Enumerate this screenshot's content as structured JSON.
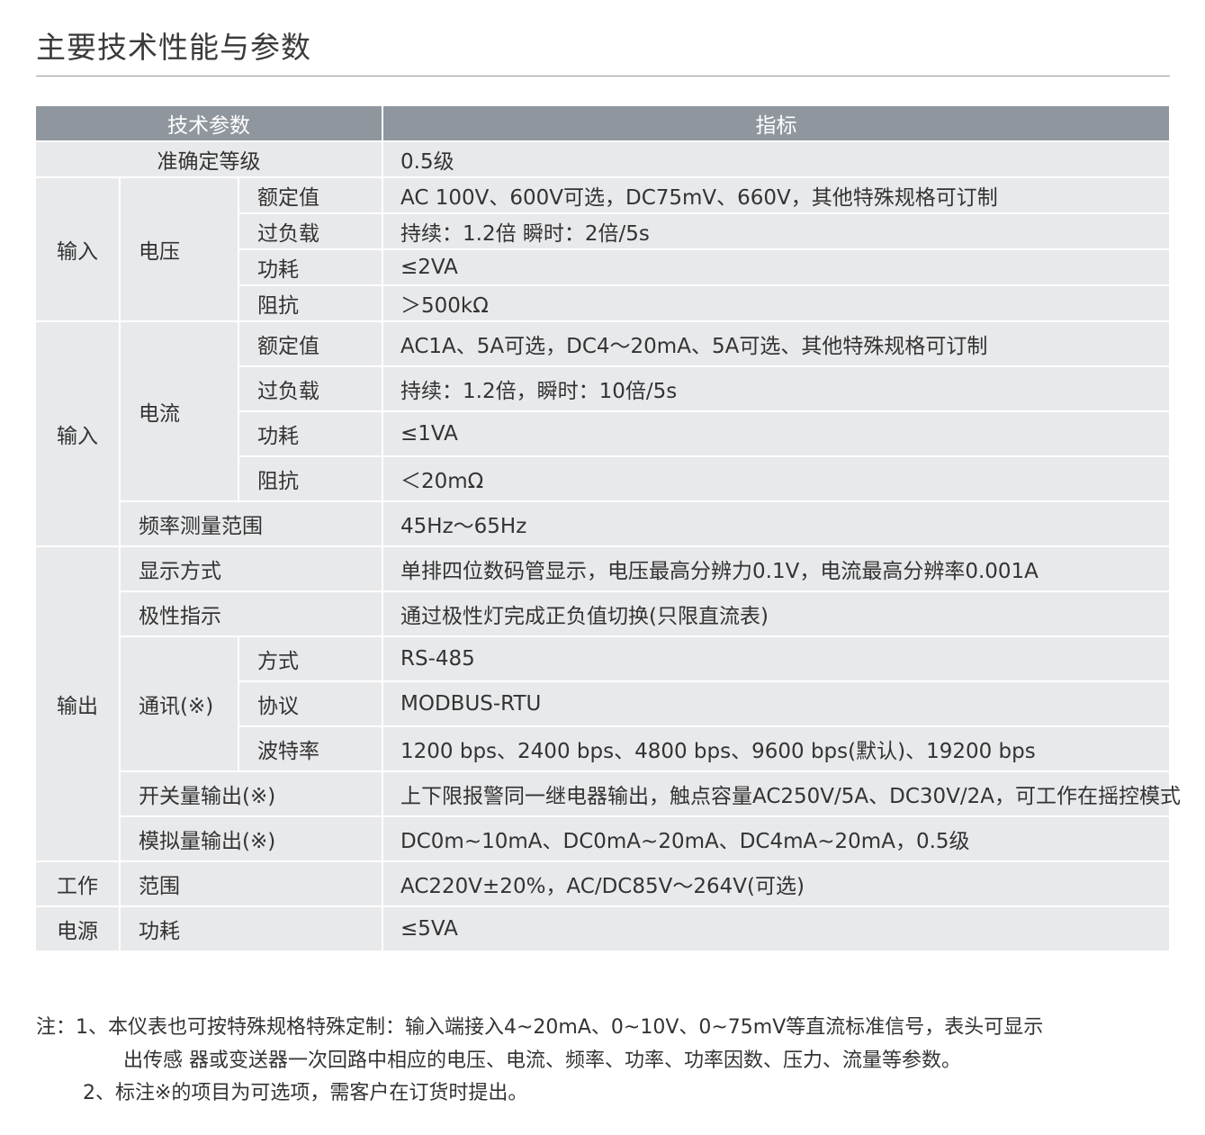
{
  "title": "主要技术性能与参数",
  "table": {
    "headers": [
      "技术参数",
      "指标"
    ],
    "accuracy": {
      "label": "准确定等级",
      "value": "0.5级"
    },
    "voltage": {
      "group": "输入",
      "label": "电压",
      "rows": [
        {
          "label": "额定值",
          "value": "AC 100V、600V可选，DC75mV、660V，其他特殊规格可订制"
        },
        {
          "label": "过负载",
          "value": "持续：1.2倍 瞬时：2倍/5s"
        },
        {
          "label": "功耗",
          "value": "≤2VA"
        },
        {
          "label": "阻抗",
          "value": "＞500kΩ"
        }
      ]
    },
    "current": {
      "group": "输入",
      "label": "电流",
      "rows": [
        {
          "label": "额定值",
          "value": "AC1A、5A可选，DC4～20mA、5A可选、其他特殊规格可订制"
        },
        {
          "label": "过负载",
          "value": "持续：1.2倍，瞬时：10倍/5s"
        },
        {
          "label": "功耗",
          "value": "≤1VA"
        },
        {
          "label": "阻抗",
          "value": "＜20mΩ"
        }
      ],
      "frequency": {
        "label": "频率测量范围",
        "value": "45Hz～65Hz"
      }
    },
    "output": {
      "group": "输出",
      "display": {
        "label": "显示方式",
        "value": "单排四位数码管显示，电压最高分辨力0.1V，电流最高分辨率0.001A"
      },
      "polarity": {
        "label": "极性指示",
        "value": "通过极性灯完成正负值切换(只限直流表)"
      },
      "comm": {
        "label": "通讯(※)",
        "rows": [
          {
            "label": "方式",
            "value": "RS-485"
          },
          {
            "label": "协议",
            "value": "MODBUS-RTU"
          },
          {
            "label": "波特率",
            "value": "1200 bps、2400 bps、4800 bps、9600 bps(默认)、19200 bps"
          }
        ]
      },
      "switch": {
        "label": "开关量输出(※)",
        "value": "上下限报警同一继电器输出，触点容量AC250V/5A、DC30V/2A，可工作在摇控模式"
      },
      "analog": {
        "label": "模拟量输出(※)",
        "value": "DC0m~10mA、DC0mA~20mA、DC4mA~20mA，0.5级"
      }
    },
    "power": {
      "group1": "工作",
      "group2": "电源",
      "range": {
        "label": "范围",
        "value": "AC220V±20%，AC/DC85V～264V(可选)"
      },
      "consumption": {
        "label": "功耗",
        "value": "≤5VA"
      }
    }
  },
  "notes": {
    "prefix": "注：1、",
    "line1": "本仪表也可按特殊规格特殊定制：输入端接入4~20mA、0~10V、0~75mV等直流标准信号，表头可显示",
    "line1b": "出传感 器或变送器一次回路中相应的电压、电流、频率、功率、功率因数、压力、流量等参数。",
    "prefix2": "2、",
    "line2": "标注※的项目为可选项，需客户在订货时提出。"
  },
  "colors": {
    "header_bg": "#8f969e",
    "cell_bg": "#e8e9eb",
    "text": "#333333"
  }
}
